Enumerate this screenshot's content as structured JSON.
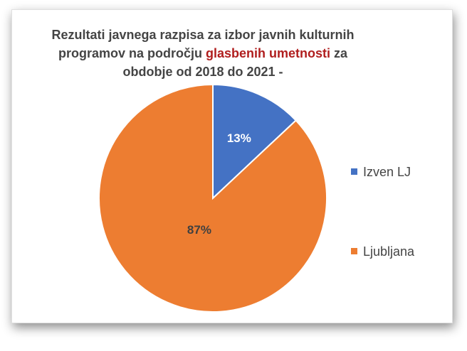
{
  "chart_data": {
    "type": "pie",
    "title": {
      "line1": "Rezultati javnega razpisa za izbor javnih kulturnih",
      "line2_before": "programov na področju ",
      "line2_highlight": "glasbenih umetnosti",
      "line2_after": " za",
      "line3": "obdobje od 2018 do 2021 -"
    },
    "title_highlight_color": "#b01e1e",
    "slices": [
      {
        "label": "Izven LJ",
        "value": 13,
        "value_label": "13%",
        "color": "#4472c4"
      },
      {
        "label": "Ljubljana",
        "value": 87,
        "value_label": "87%",
        "color": "#ed7d31"
      }
    ],
    "legend_position": "right"
  }
}
